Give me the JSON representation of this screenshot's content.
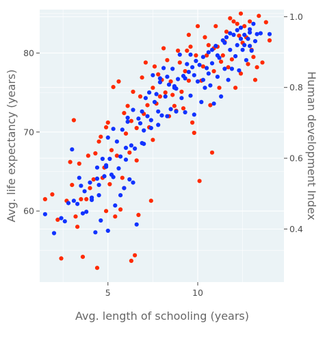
{
  "chart_data": {
    "type": "scatter",
    "title": "",
    "xlabel": "Avg. length of schooling (years)",
    "ylabel": "Avg. life expectancy (years)",
    "y2label": "Human development Index",
    "xlim": [
      1.2,
      14.8
    ],
    "ylim": [
      51,
      85.5
    ],
    "y2lim": [
      0.25,
      1.02
    ],
    "xticks": [
      "5",
      "10"
    ],
    "xtick_values": [
      5,
      10
    ],
    "yticks": [
      "60",
      "70",
      "80"
    ],
    "ytick_values": [
      60,
      70,
      80
    ],
    "y2ticks": [
      "0.4",
      "0.6",
      "0.8",
      "1.0"
    ],
    "y2tick_values": [
      0.4,
      0.6,
      0.8,
      1.0
    ],
    "grid": true,
    "legend": "none",
    "series": [
      {
        "axis": "left",
        "color": "#ff2a00",
        "points": [
          [
            1.5,
            61.5
          ],
          [
            1.9,
            62.1
          ],
          [
            2.4,
            54.0
          ],
          [
            2.7,
            61.3
          ],
          [
            2.9,
            66.2
          ],
          [
            3.1,
            71.5
          ],
          [
            3.2,
            59.3
          ],
          [
            3.3,
            58.0
          ],
          [
            3.4,
            66.0
          ],
          [
            3.6,
            54.2
          ],
          [
            3.8,
            61.5
          ],
          [
            3.9,
            67.0
          ],
          [
            4.2,
            64.0
          ],
          [
            4.3,
            67.3
          ],
          [
            4.4,
            52.8
          ],
          [
            4.5,
            68.8
          ],
          [
            4.6,
            69.4
          ],
          [
            4.7,
            64.2
          ],
          [
            4.8,
            65.5
          ],
          [
            4.9,
            70.6
          ],
          [
            5.0,
            71.2
          ],
          [
            5.1,
            63.4
          ],
          [
            5.3,
            75.7
          ],
          [
            5.4,
            59.3
          ],
          [
            5.5,
            67.0
          ],
          [
            5.6,
            76.4
          ],
          [
            5.7,
            60.2
          ],
          [
            5.8,
            64.2
          ],
          [
            5.9,
            72.4
          ],
          [
            6.0,
            69.8
          ],
          [
            6.1,
            73.3
          ],
          [
            6.2,
            67.4
          ],
          [
            6.3,
            53.7
          ],
          [
            6.4,
            75.1
          ],
          [
            6.5,
            54.4
          ],
          [
            6.6,
            70.5
          ],
          [
            6.7,
            59.5
          ],
          [
            6.8,
            74.5
          ],
          [
            6.9,
            76.9
          ],
          [
            7.0,
            72.3
          ],
          [
            7.1,
            78.8
          ],
          [
            7.2,
            73.4
          ],
          [
            7.3,
            70.6
          ],
          [
            7.4,
            61.3
          ],
          [
            7.5,
            75.6
          ],
          [
            7.6,
            78.3
          ],
          [
            7.7,
            73.6
          ],
          [
            7.8,
            77.3
          ],
          [
            7.9,
            74.5
          ],
          [
            8.0,
            76.6
          ],
          [
            8.2,
            75.0
          ],
          [
            8.3,
            79.1
          ],
          [
            8.5,
            76.4
          ],
          [
            8.6,
            74.7
          ],
          [
            8.7,
            73.3
          ],
          [
            8.8,
            72.7
          ],
          [
            8.9,
            80.3
          ],
          [
            9.0,
            78.8
          ],
          [
            9.1,
            75.1
          ],
          [
            9.3,
            77.7
          ],
          [
            9.4,
            80.3
          ],
          [
            9.5,
            76.5
          ],
          [
            9.6,
            80.8
          ],
          [
            9.7,
            71.2
          ],
          [
            9.8,
            69.9
          ],
          [
            9.9,
            79.7
          ],
          [
            10.0,
            83.4
          ],
          [
            10.1,
            63.8
          ],
          [
            10.2,
            76.5
          ],
          [
            10.3,
            78.3
          ],
          [
            10.5,
            79.7
          ],
          [
            10.6,
            81.0
          ],
          [
            10.7,
            73.4
          ],
          [
            10.8,
            67.4
          ],
          [
            10.9,
            77.7
          ],
          [
            11.0,
            83.4
          ],
          [
            11.1,
            80.8
          ],
          [
            11.3,
            78.9
          ],
          [
            11.4,
            79.7
          ],
          [
            11.5,
            81.4
          ],
          [
            11.6,
            82.7
          ],
          [
            11.8,
            84.4
          ],
          [
            11.9,
            79.2
          ],
          [
            12.1,
            75.6
          ],
          [
            12.2,
            83.7
          ],
          [
            12.4,
            77.4
          ],
          [
            12.5,
            81.3
          ],
          [
            12.6,
            83.4
          ],
          [
            12.8,
            78.6
          ],
          [
            12.9,
            84.0
          ],
          [
            13.0,
            80.4
          ],
          [
            13.2,
            76.6
          ],
          [
            13.4,
            84.7
          ],
          [
            13.6,
            78.8
          ],
          [
            13.8,
            83.9
          ],
          [
            14.0,
            81.6
          ],
          [
            12.3,
            82.2
          ],
          [
            11.7,
            78.2
          ],
          [
            10.4,
            82.0
          ],
          [
            9.2,
            73.0
          ],
          [
            8.4,
            72.0
          ],
          [
            7.5,
            69.0
          ],
          [
            6.6,
            66.4
          ],
          [
            5.2,
            67.7
          ],
          [
            4.0,
            62.9
          ],
          [
            3.0,
            63.3
          ],
          [
            2.2,
            58.9
          ],
          [
            12.7,
            82.0
          ],
          [
            11.2,
            75.6
          ],
          [
            13.3,
            78.2
          ],
          [
            10.9,
            80.6
          ],
          [
            12.0,
            84.0
          ],
          [
            9.5,
            82.3
          ],
          [
            8.1,
            80.6
          ],
          [
            6.3,
            71.4
          ],
          [
            5.9,
            62.9
          ],
          [
            4.9,
            60.0
          ],
          [
            3.5,
            61.5
          ],
          [
            12.4,
            85.0
          ],
          [
            13.1,
            79.5
          ]
        ]
      },
      {
        "axis": "left",
        "color": "#1133ff",
        "points": [
          [
            1.5,
            59.6
          ],
          [
            2.0,
            57.2
          ],
          [
            2.4,
            59.1
          ],
          [
            2.8,
            61.0
          ],
          [
            3.0,
            67.8
          ],
          [
            3.1,
            61.3
          ],
          [
            3.3,
            60.9
          ],
          [
            3.5,
            63.2
          ],
          [
            3.6,
            59.7
          ],
          [
            3.7,
            62.5
          ],
          [
            3.8,
            59.9
          ],
          [
            4.0,
            63.6
          ],
          [
            4.1,
            61.4
          ],
          [
            4.3,
            57.3
          ],
          [
            4.4,
            64.1
          ],
          [
            4.5,
            63.3
          ],
          [
            4.6,
            58.8
          ],
          [
            4.7,
            66.6
          ],
          [
            4.8,
            64.4
          ],
          [
            4.9,
            65.8
          ],
          [
            5.0,
            57.5
          ],
          [
            5.1,
            66.6
          ],
          [
            5.2,
            64.6
          ],
          [
            5.3,
            70.4
          ],
          [
            5.4,
            60.7
          ],
          [
            5.5,
            68.8
          ],
          [
            5.6,
            65.4
          ],
          [
            5.7,
            62.0
          ],
          [
            5.8,
            70.3
          ],
          [
            5.9,
            62.9
          ],
          [
            6.0,
            66.5
          ],
          [
            6.1,
            71.3
          ],
          [
            6.2,
            64.0
          ],
          [
            6.3,
            68.3
          ],
          [
            6.4,
            72.8
          ],
          [
            6.5,
            67.9
          ],
          [
            6.6,
            58.3
          ],
          [
            6.7,
            71.7
          ],
          [
            6.8,
            71.1
          ],
          [
            6.9,
            72.6
          ],
          [
            7.0,
            68.5
          ],
          [
            7.1,
            74.3
          ],
          [
            7.2,
            72.0
          ],
          [
            7.3,
            75.0
          ],
          [
            7.4,
            71.5
          ],
          [
            7.5,
            77.2
          ],
          [
            7.6,
            73.8
          ],
          [
            7.7,
            74.8
          ],
          [
            7.8,
            70.9
          ],
          [
            7.9,
            76.3
          ],
          [
            8.0,
            72.1
          ],
          [
            8.1,
            78.1
          ],
          [
            8.2,
            74.5
          ],
          [
            8.3,
            77.0
          ],
          [
            8.4,
            76.0
          ],
          [
            8.5,
            72.9
          ],
          [
            8.6,
            78.0
          ],
          [
            8.7,
            75.8
          ],
          [
            8.8,
            72.6
          ],
          [
            8.9,
            76.7
          ],
          [
            9.0,
            79.8
          ],
          [
            9.1,
            74.3
          ],
          [
            9.2,
            77.1
          ],
          [
            9.3,
            72.5
          ],
          [
            9.4,
            78.6
          ],
          [
            9.5,
            77.6
          ],
          [
            9.6,
            74.6
          ],
          [
            9.7,
            78.2
          ],
          [
            9.8,
            72.2
          ],
          [
            9.9,
            79.0
          ],
          [
            10.0,
            76.4
          ],
          [
            10.1,
            78.5
          ],
          [
            10.2,
            73.8
          ],
          [
            10.3,
            79.5
          ],
          [
            10.4,
            75.6
          ],
          [
            10.5,
            78.1
          ],
          [
            10.6,
            80.1
          ],
          [
            10.7,
            75.9
          ],
          [
            10.8,
            78.7
          ],
          [
            10.9,
            73.6
          ],
          [
            11.0,
            80.9
          ],
          [
            11.1,
            77.0
          ],
          [
            11.2,
            79.4
          ],
          [
            11.3,
            74.5
          ],
          [
            11.4,
            81.6
          ],
          [
            11.5,
            78.0
          ],
          [
            11.6,
            82.0
          ],
          [
            11.7,
            76.6
          ],
          [
            11.8,
            80.4
          ],
          [
            11.9,
            78.0
          ],
          [
            12.0,
            82.3
          ],
          [
            12.1,
            79.6
          ],
          [
            12.2,
            81.0
          ],
          [
            12.3,
            77.8
          ],
          [
            12.4,
            83.2
          ],
          [
            12.5,
            80.4
          ],
          [
            12.6,
            82.3
          ],
          [
            12.7,
            79.1
          ],
          [
            12.8,
            81.8
          ],
          [
            12.9,
            82.6
          ],
          [
            13.0,
            80.3
          ],
          [
            13.1,
            83.7
          ],
          [
            13.2,
            81.5
          ],
          [
            13.3,
            82.4
          ],
          [
            14.0,
            82.4
          ],
          [
            12.6,
            81.0
          ],
          [
            12.2,
            82.9
          ],
          [
            11.5,
            81.3
          ],
          [
            10.8,
            80.4
          ],
          [
            10.3,
            76.6
          ],
          [
            9.8,
            77.2
          ],
          [
            9.3,
            76.8
          ],
          [
            8.8,
            75.5
          ],
          [
            8.3,
            72.0
          ],
          [
            7.8,
            72.6
          ],
          [
            7.4,
            70.5
          ],
          [
            6.9,
            68.6
          ],
          [
            6.4,
            63.6
          ],
          [
            6.1,
            71.8
          ],
          [
            5.7,
            66.9
          ],
          [
            5.3,
            64.3
          ],
          [
            4.9,
            65.6
          ],
          [
            4.5,
            62.0
          ],
          [
            4.1,
            61.7
          ],
          [
            3.4,
            64.2
          ],
          [
            2.6,
            58.7
          ],
          [
            12.9,
            83.0
          ],
          [
            12.4,
            81.8
          ],
          [
            11.8,
            82.5
          ],
          [
            11.1,
            79.7
          ],
          [
            10.6,
            77.4
          ],
          [
            9.6,
            79.8
          ],
          [
            8.7,
            75.6
          ],
          [
            7.9,
            76.8
          ],
          [
            7.0,
            70.2
          ],
          [
            6.0,
            68.0
          ],
          [
            5.0,
            69.3
          ],
          [
            4.4,
            65.5
          ],
          [
            13.5,
            82.5
          ],
          [
            12.9,
            80.9
          ]
        ]
      }
    ]
  }
}
